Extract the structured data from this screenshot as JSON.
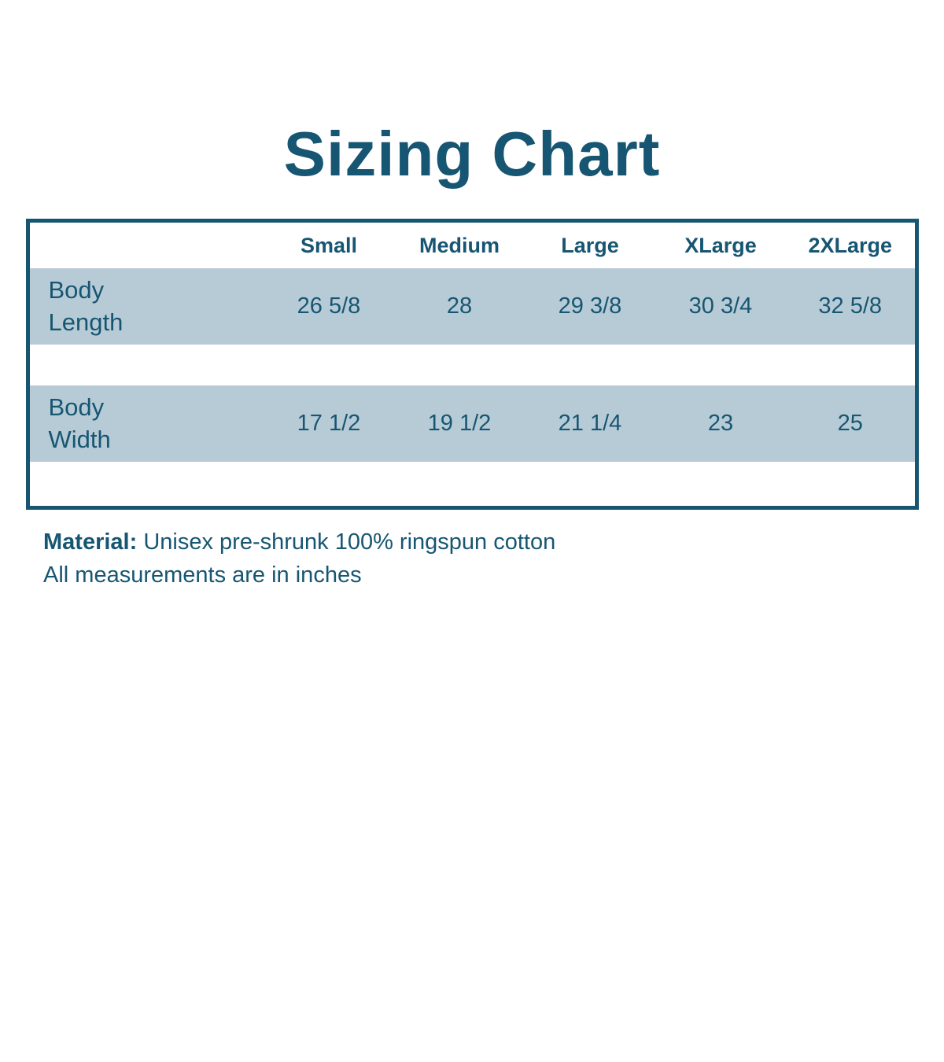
{
  "title": "Sizing Chart",
  "colors": {
    "accent": "#175672",
    "row_background": "#b7cbd6",
    "page_background": "#ffffff"
  },
  "table": {
    "columns": [
      "Small",
      "Medium",
      "Large",
      "XLarge",
      "2XLarge"
    ],
    "rows": [
      {
        "label": "Body Length",
        "values": [
          "26 5/8",
          "28",
          "29 3/8",
          "30 3/4",
          "32 5/8"
        ]
      },
      {
        "label": "Body Width",
        "values": [
          "17 1/2",
          "19 1/2",
          "21 1/4",
          "23",
          "25"
        ]
      }
    ]
  },
  "notes": {
    "material_label": "Material:",
    "material_value": "Unisex pre-shrunk 100% ringspun cotton",
    "measurements": "All measurements are in inches"
  },
  "chart_data": {
    "type": "table",
    "title": "Sizing Chart",
    "categories": [
      "Small",
      "Medium",
      "Large",
      "XLarge",
      "2XLarge"
    ],
    "series": [
      {
        "name": "Body Length",
        "values": [
          26.625,
          28,
          29.375,
          30.75,
          32.625
        ]
      },
      {
        "name": "Body Width",
        "values": [
          17.5,
          19.5,
          21.25,
          23,
          25
        ]
      }
    ],
    "units": "inches",
    "annotations": [
      "Material: Unisex pre-shrunk 100% ringspun cotton",
      "All measurements are in inches"
    ]
  }
}
